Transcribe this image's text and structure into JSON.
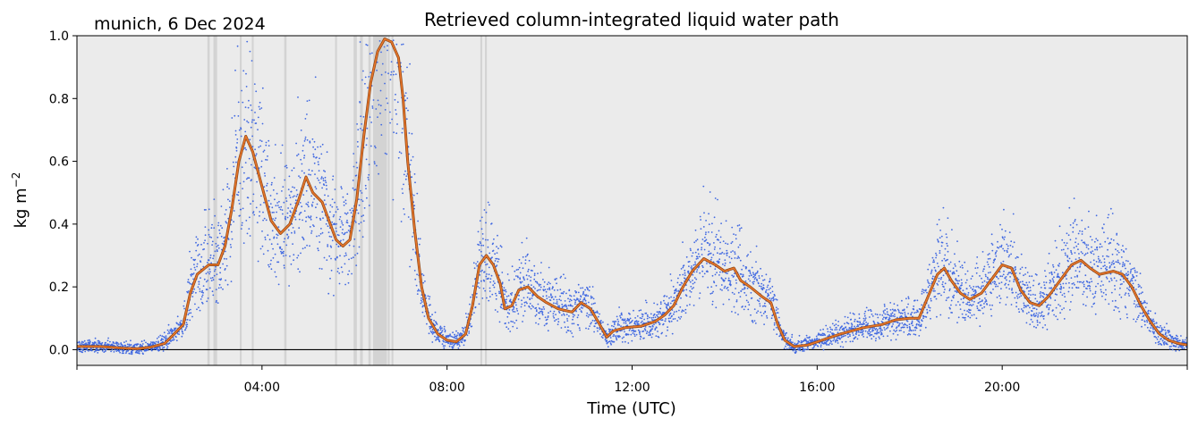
{
  "chart_data": {
    "type": "line",
    "title": "Retrieved column-integrated liquid water path",
    "subtitle": "munich, 6 Dec 2024",
    "xlabel": "Time (UTC)",
    "ylabel_base": "kg m",
    "ylabel_exponent": "−2",
    "xlim_hours": [
      0,
      24
    ],
    "ylim": [
      -0.05,
      1.0
    ],
    "x_ticks": [
      {
        "hour": 4,
        "label": "04:00"
      },
      {
        "hour": 8,
        "label": "08:00"
      },
      {
        "hour": 12,
        "label": "12:00"
      },
      {
        "hour": 16,
        "label": "16:00"
      },
      {
        "hour": 20,
        "label": "20:00"
      }
    ],
    "y_ticks": [
      {
        "value": 0.0,
        "label": "0.0"
      },
      {
        "value": 0.2,
        "label": "0.2"
      },
      {
        "value": 0.4,
        "label": "0.4"
      },
      {
        "value": 0.6,
        "label": "0.6"
      },
      {
        "value": 0.8,
        "label": "0.8"
      },
      {
        "value": 1.0,
        "label": "1.0"
      }
    ],
    "grid": false,
    "background_color": "#ebebeb",
    "series": [
      {
        "role": "scatter",
        "color": "#4169e1",
        "description": "raw retrieved LWP dots, spread around the smoothed line"
      },
      {
        "role": "smoothed",
        "color": "#e8752a",
        "points": [
          [
            0.0,
            0.01
          ],
          [
            0.5,
            0.01
          ],
          [
            1.0,
            0.005
          ],
          [
            1.3,
            0.003
          ],
          [
            1.6,
            0.008
          ],
          [
            1.9,
            0.02
          ],
          [
            2.1,
            0.05
          ],
          [
            2.3,
            0.08
          ],
          [
            2.45,
            0.18
          ],
          [
            2.6,
            0.24
          ],
          [
            2.85,
            0.27
          ],
          [
            3.05,
            0.27
          ],
          [
            3.2,
            0.33
          ],
          [
            3.35,
            0.45
          ],
          [
            3.5,
            0.6
          ],
          [
            3.65,
            0.68
          ],
          [
            3.8,
            0.63
          ],
          [
            4.0,
            0.52
          ],
          [
            4.2,
            0.41
          ],
          [
            4.4,
            0.37
          ],
          [
            4.6,
            0.4
          ],
          [
            4.8,
            0.48
          ],
          [
            4.95,
            0.55
          ],
          [
            5.1,
            0.5
          ],
          [
            5.3,
            0.47
          ],
          [
            5.45,
            0.41
          ],
          [
            5.6,
            0.35
          ],
          [
            5.75,
            0.33
          ],
          [
            5.9,
            0.35
          ],
          [
            6.05,
            0.48
          ],
          [
            6.2,
            0.68
          ],
          [
            6.35,
            0.85
          ],
          [
            6.5,
            0.95
          ],
          [
            6.65,
            0.99
          ],
          [
            6.8,
            0.98
          ],
          [
            6.95,
            0.93
          ],
          [
            7.05,
            0.8
          ],
          [
            7.15,
            0.6
          ],
          [
            7.3,
            0.38
          ],
          [
            7.45,
            0.2
          ],
          [
            7.6,
            0.1
          ],
          [
            7.8,
            0.05
          ],
          [
            8.0,
            0.03
          ],
          [
            8.2,
            0.025
          ],
          [
            8.4,
            0.05
          ],
          [
            8.55,
            0.14
          ],
          [
            8.7,
            0.27
          ],
          [
            8.85,
            0.3
          ],
          [
            9.0,
            0.27
          ],
          [
            9.15,
            0.21
          ],
          [
            9.25,
            0.13
          ],
          [
            9.4,
            0.14
          ],
          [
            9.55,
            0.19
          ],
          [
            9.75,
            0.2
          ],
          [
            9.95,
            0.17
          ],
          [
            10.15,
            0.15
          ],
          [
            10.4,
            0.13
          ],
          [
            10.7,
            0.12
          ],
          [
            10.9,
            0.15
          ],
          [
            11.1,
            0.13
          ],
          [
            11.3,
            0.08
          ],
          [
            11.45,
            0.04
          ],
          [
            11.6,
            0.06
          ],
          [
            11.85,
            0.07
          ],
          [
            12.2,
            0.075
          ],
          [
            12.5,
            0.09
          ],
          [
            12.7,
            0.11
          ],
          [
            12.9,
            0.14
          ],
          [
            13.1,
            0.2
          ],
          [
            13.3,
            0.25
          ],
          [
            13.55,
            0.29
          ],
          [
            13.8,
            0.27
          ],
          [
            14.0,
            0.25
          ],
          [
            14.2,
            0.26
          ],
          [
            14.35,
            0.22
          ],
          [
            14.55,
            0.2
          ],
          [
            14.8,
            0.17
          ],
          [
            15.0,
            0.15
          ],
          [
            15.15,
            0.08
          ],
          [
            15.3,
            0.03
          ],
          [
            15.5,
            0.01
          ],
          [
            15.8,
            0.015
          ],
          [
            16.1,
            0.03
          ],
          [
            16.5,
            0.05
          ],
          [
            17.0,
            0.07
          ],
          [
            17.4,
            0.08
          ],
          [
            17.7,
            0.095
          ],
          [
            18.0,
            0.1
          ],
          [
            18.2,
            0.1
          ],
          [
            18.4,
            0.17
          ],
          [
            18.6,
            0.24
          ],
          [
            18.75,
            0.26
          ],
          [
            18.9,
            0.22
          ],
          [
            19.1,
            0.18
          ],
          [
            19.3,
            0.16
          ],
          [
            19.55,
            0.18
          ],
          [
            19.8,
            0.23
          ],
          [
            20.0,
            0.27
          ],
          [
            20.2,
            0.26
          ],
          [
            20.4,
            0.19
          ],
          [
            20.6,
            0.15
          ],
          [
            20.8,
            0.14
          ],
          [
            21.0,
            0.17
          ],
          [
            21.2,
            0.21
          ],
          [
            21.5,
            0.27
          ],
          [
            21.7,
            0.285
          ],
          [
            21.9,
            0.26
          ],
          [
            22.1,
            0.24
          ],
          [
            22.4,
            0.25
          ],
          [
            22.6,
            0.24
          ],
          [
            22.8,
            0.2
          ],
          [
            23.0,
            0.14
          ],
          [
            23.2,
            0.09
          ],
          [
            23.4,
            0.05
          ],
          [
            23.6,
            0.03
          ],
          [
            23.8,
            0.02
          ],
          [
            24.0,
            0.015
          ]
        ]
      }
    ],
    "flag_bands_hours": [
      [
        2.82,
        2.87
      ],
      [
        2.95,
        3.03
      ],
      [
        3.52,
        3.56
      ],
      [
        3.78,
        3.82
      ],
      [
        4.48,
        4.53
      ],
      [
        5.58,
        5.62
      ],
      [
        5.98,
        6.05
      ],
      [
        6.12,
        6.18
      ],
      [
        6.3,
        6.35
      ],
      [
        6.4,
        6.7
      ],
      [
        6.72,
        6.76
      ],
      [
        6.8,
        6.84
      ],
      [
        8.72,
        8.76
      ],
      [
        8.82,
        8.86
      ]
    ],
    "colors": {
      "scatter": "#4169e1",
      "smoothed_line": "#e8752a",
      "smoothed_edge": "#8b4513",
      "flag_band": "#c9c9c9",
      "zero_line": "#000000"
    }
  }
}
